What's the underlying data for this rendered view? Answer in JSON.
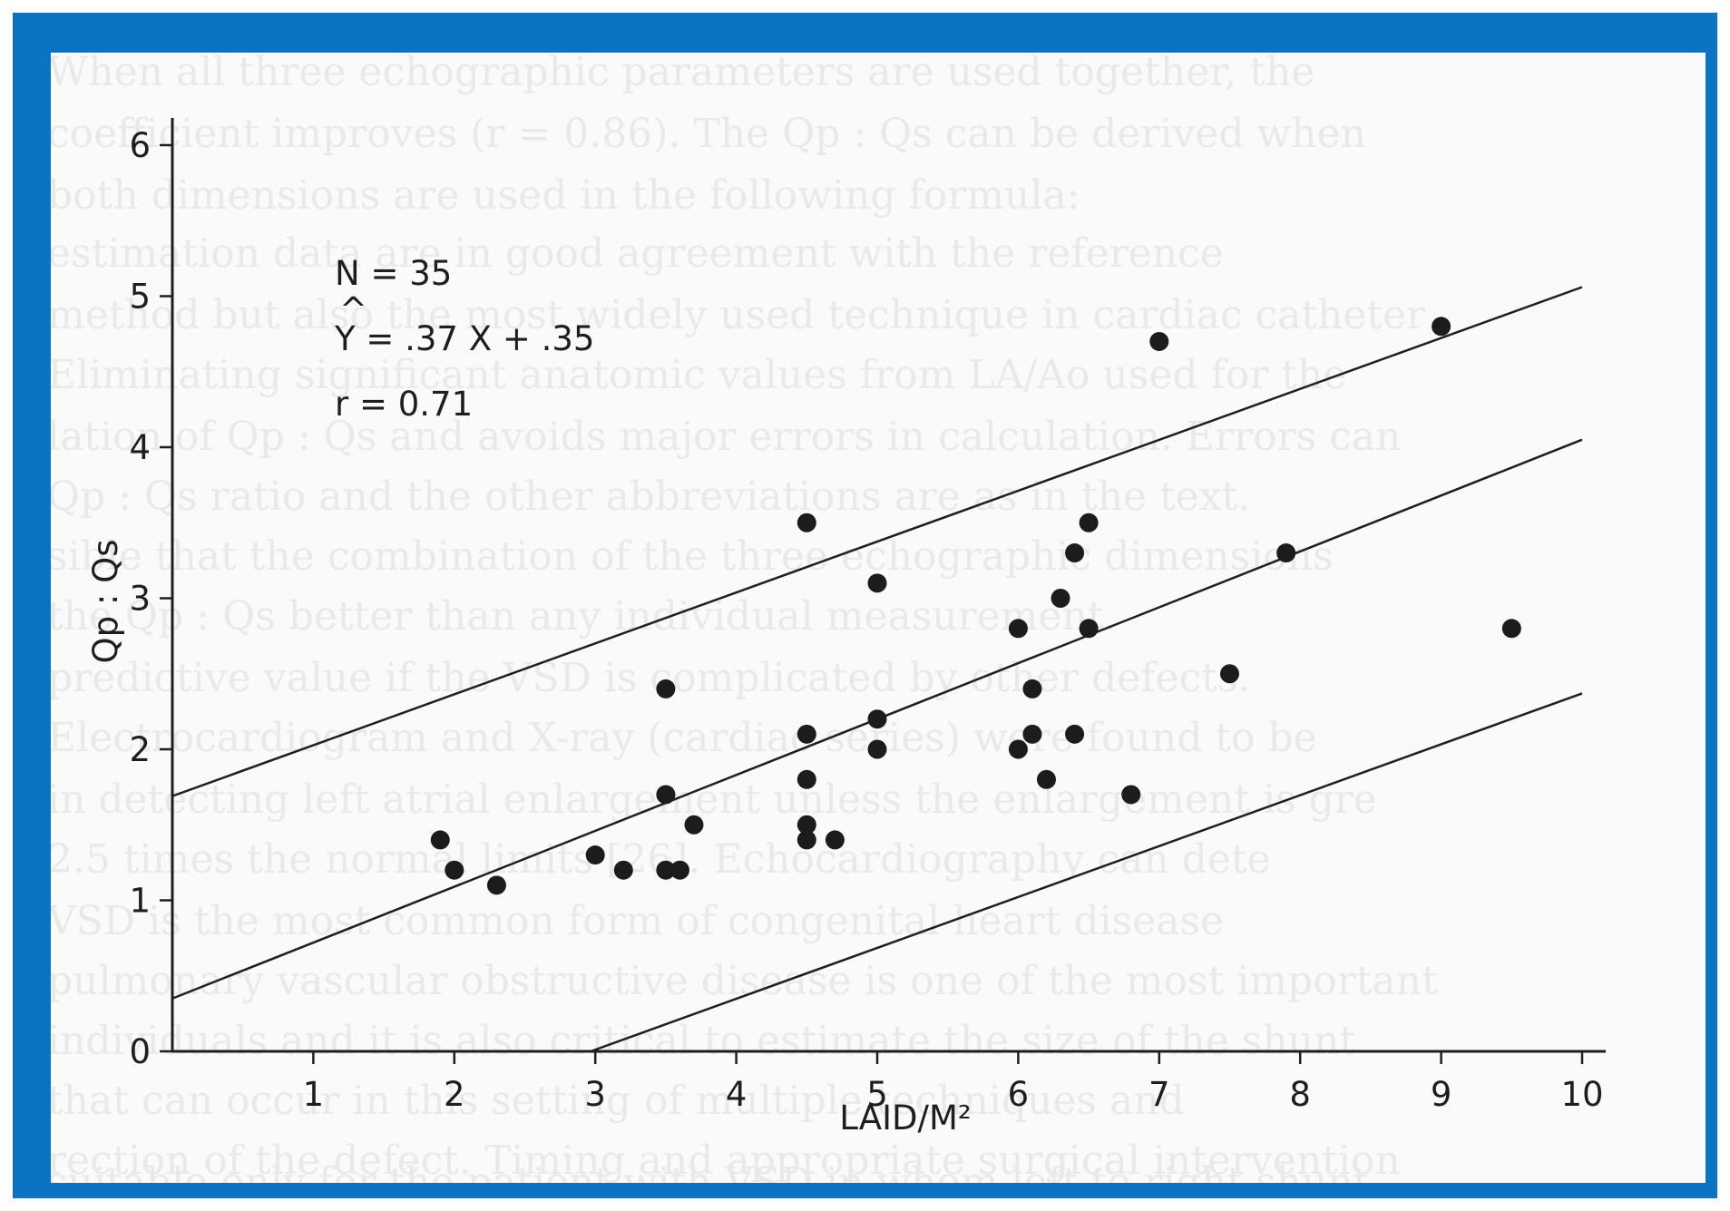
{
  "chart_data": {
    "type": "scatter",
    "title": "",
    "xlabel": "LAID/M²",
    "ylabel": "Qp : Qs",
    "xlim": [
      0,
      10
    ],
    "ylim": [
      0,
      6
    ],
    "x_ticks": [
      "1",
      "2",
      "3",
      "4",
      "5",
      "6",
      "7",
      "8",
      "9",
      "10"
    ],
    "y_ticks": [
      "0",
      "1",
      "2",
      "3",
      "4",
      "5",
      "6"
    ],
    "grid": false,
    "annotations": {
      "n": "N = 35",
      "hat": "^",
      "equation": "Y = .37 X + .35",
      "r": "r = 0.71"
    },
    "regression": {
      "slope": 0.37,
      "intercept": 0.35
    },
    "bands": [
      {
        "slope": 0.337,
        "intercept": 1.69
      },
      {
        "slope": 0.37,
        "intercept": 0.35
      },
      {
        "slope": 0.337,
        "intercept": -1.0
      }
    ],
    "points": [
      {
        "x": 1.9,
        "y": 1.4
      },
      {
        "x": 2.0,
        "y": 1.2
      },
      {
        "x": 2.3,
        "y": 1.1
      },
      {
        "x": 3.0,
        "y": 1.3
      },
      {
        "x": 3.2,
        "y": 1.2
      },
      {
        "x": 3.5,
        "y": 1.2
      },
      {
        "x": 3.6,
        "y": 1.2
      },
      {
        "x": 3.5,
        "y": 1.7
      },
      {
        "x": 3.7,
        "y": 1.5
      },
      {
        "x": 3.5,
        "y": 2.4
      },
      {
        "x": 4.5,
        "y": 3.5
      },
      {
        "x": 4.5,
        "y": 2.1
      },
      {
        "x": 4.5,
        "y": 1.8
      },
      {
        "x": 4.5,
        "y": 1.5
      },
      {
        "x": 4.5,
        "y": 1.4
      },
      {
        "x": 4.7,
        "y": 1.4
      },
      {
        "x": 5.0,
        "y": 3.1
      },
      {
        "x": 5.0,
        "y": 2.2
      },
      {
        "x": 5.0,
        "y": 2.0
      },
      {
        "x": 6.0,
        "y": 2.8
      },
      {
        "x": 6.0,
        "y": 2.0
      },
      {
        "x": 6.1,
        "y": 2.4
      },
      {
        "x": 6.1,
        "y": 2.1
      },
      {
        "x": 6.2,
        "y": 1.8
      },
      {
        "x": 6.3,
        "y": 3.0
      },
      {
        "x": 6.4,
        "y": 3.3
      },
      {
        "x": 6.4,
        "y": 2.1
      },
      {
        "x": 6.5,
        "y": 3.5
      },
      {
        "x": 6.5,
        "y": 2.8
      },
      {
        "x": 6.8,
        "y": 1.7
      },
      {
        "x": 7.0,
        "y": 4.7
      },
      {
        "x": 7.5,
        "y": 2.5
      },
      {
        "x": 7.9,
        "y": 3.3
      },
      {
        "x": 9.0,
        "y": 4.8
      },
      {
        "x": 9.5,
        "y": 2.8
      }
    ]
  },
  "background_text": {
    "lines": [
      "When all three echographic parameters are used together, the",
      "coefficient improves (r = 0.86). The Qp : Qs can be derived when",
      "both dimensions are used in the following formula:",
      "estimation data are in good agreement with the reference",
      "method but also the most widely used technique in cardiac catheter",
      "Eliminating significant anatomic values from LA/Ao used for the",
      "lation of Qp : Qs and avoids major errors in calculation. Errors can",
      "Qp : Qs ratio and the other abbreviations are as in the text.",
      "sible that the combination of the three echographic dimensions",
      "the Qp : Qs better than any individual measurement.",
      "predictive value if the VSD is complicated by other defects.",
      "Electrocardiogram and X-ray (cardiac series) were found to be",
      "in detecting left atrial enlargement unless the enlargement is gre",
      "2.5 times the normal limits [26]. Echocardiography can dete",
      "VSD is the most common form of congenital heart disease",
      "pulmonary vascular obstructive disease is one of the most important",
      "individuals and it is also critical to estimate the size of the shunt",
      "that can occur in this setting of multiple techniques and",
      "rection of the defect. Timing and appropriate surgical intervention",
      "suitable only for the patient with VSD in whom left to right shunt"
    ]
  }
}
